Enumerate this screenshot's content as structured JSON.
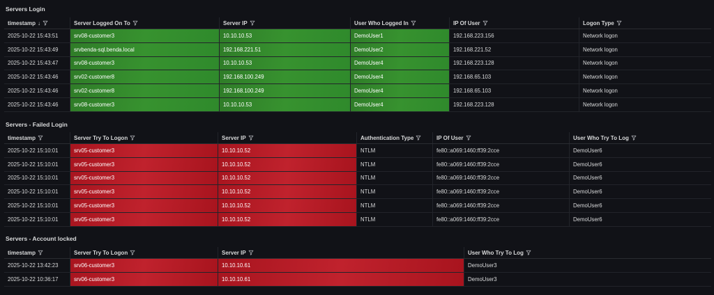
{
  "panels": {
    "login": {
      "title": "Servers Login",
      "headers": [
        "timestamp",
        "Server Logged On To",
        "Server IP",
        "User Who Logged In",
        "IP Of User",
        "Logon Type"
      ],
      "rows": [
        [
          "2025-10-22 15:43:51",
          "srv08-customer3",
          "10.10.10.53",
          "DemoUser1",
          "192.168.223.156",
          "Network logon"
        ],
        [
          "2025-10-22 15:43:49",
          "srvbenda-sql.benda.local",
          "192.168.221.51",
          "DemoUser2",
          "192.168.221.52",
          "Network logon"
        ],
        [
          "2025-10-22 15:43:47",
          "srv08-customer3",
          "10.10.10.53",
          "DemoUser4",
          "192.168.223.128",
          "Network logon"
        ],
        [
          "2025-10-22 15:43:46",
          "srv02-customer8",
          "192.168.100.249",
          "DemoUser4",
          "192.168.65.103",
          "Network logon"
        ],
        [
          "2025-10-22 15:43:46",
          "srv02-customer8",
          "192.168.100.249",
          "DemoUser4",
          "192.168.65.103",
          "Network logon"
        ],
        [
          "2025-10-22 15:43:46",
          "srv08-customer3",
          "10.10.10.53",
          "DemoUser4",
          "192.168.223.128",
          "Network logon"
        ]
      ]
    },
    "failed": {
      "title": "Servers - Failed Login",
      "headers": [
        "timestamp",
        "Server Try To Logon",
        "Server IP",
        "Authentication Type",
        "IP Of User",
        "User Who Try To Log"
      ],
      "rows": [
        [
          "2025-10-22 15:10:01",
          "srv05-customer3",
          "10.10.10.52",
          "NTLM",
          "fe80::a069:1460:ff39:2cce",
          "DemoUser6"
        ],
        [
          "2025-10-22 15:10:01",
          "srv05-customer3",
          "10.10.10.52",
          "NTLM",
          "fe80::a069:1460:ff39:2cce",
          "DemoUser6"
        ],
        [
          "2025-10-22 15:10:01",
          "srv05-customer3",
          "10.10.10.52",
          "NTLM",
          "fe80::a069:1460:ff39:2cce",
          "DemoUser6"
        ],
        [
          "2025-10-22 15:10:01",
          "srv05-customer3",
          "10.10.10.52",
          "NTLM",
          "fe80::a069:1460:ff39:2cce",
          "DemoUser6"
        ],
        [
          "2025-10-22 15:10:01",
          "srv05-customer3",
          "10.10.10.52",
          "NTLM",
          "fe80::a069:1460:ff39:2cce",
          "DemoUser6"
        ],
        [
          "2025-10-22 15:10:01",
          "srv05-customer3",
          "10.10.10.52",
          "NTLM",
          "fe80::a069:1460:ff39:2cce",
          "DemoUser6"
        ]
      ]
    },
    "locked": {
      "title": "Servers - Account locked",
      "headers": [
        "timestamp",
        "Server Try To Logon",
        "Server IP",
        "User Who Try To Log"
      ],
      "rows": [
        [
          "2025-10-22 13:42:23",
          "srv06-customer3",
          "10.10.10.61",
          "DemoUser3"
        ],
        [
          "2025-10-22 10:36:17",
          "srv06-customer3",
          "10.10.10.61",
          "DemoUser3"
        ]
      ]
    }
  },
  "icons": {
    "filter": "filter-icon",
    "sort": "sort-descending-icon"
  },
  "colors": {
    "success": "#37922f",
    "failure": "#c0222d",
    "background": "#111217"
  }
}
